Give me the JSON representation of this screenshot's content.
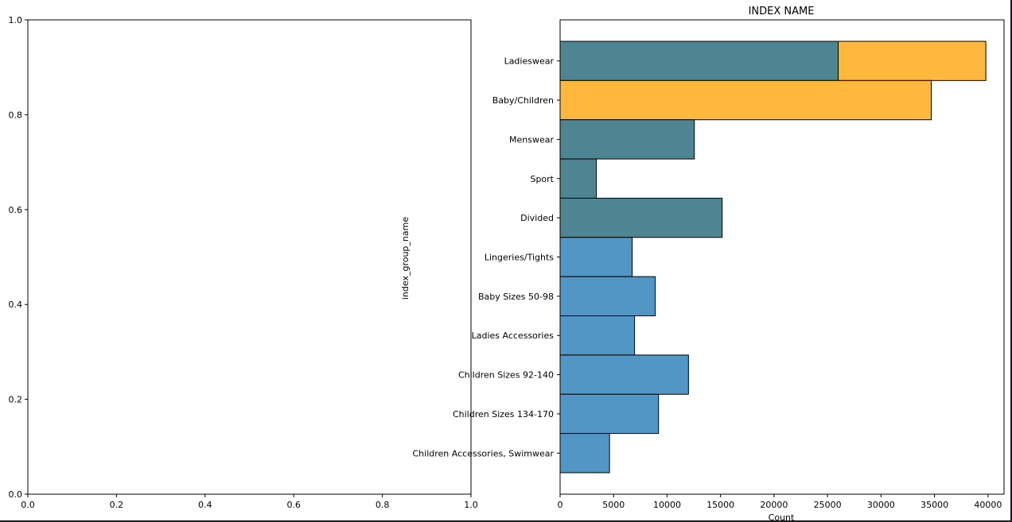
{
  "chart_data": [
    {
      "type": "empty",
      "title": "",
      "xlim": [
        0.0,
        1.0
      ],
      "ylim": [
        0.0,
        1.0
      ],
      "x_ticks": [
        "0.0",
        "0.2",
        "0.4",
        "0.6",
        "0.8",
        "1.0"
      ],
      "y_ticks": [
        "0.0",
        "0.2",
        "0.4",
        "0.6",
        "0.8",
        "1.0"
      ]
    },
    {
      "type": "bar",
      "orientation": "horizontal",
      "stacked": true,
      "title": "INDEX NAME",
      "xlabel": "Count",
      "ylabel": "index_group_name",
      "xlim": [
        0,
        41500
      ],
      "x_ticks": [
        "0",
        "5000",
        "10000",
        "15000",
        "20000",
        "25000",
        "30000",
        "35000",
        "40000"
      ],
      "categories": [
        "Ladieswear",
        "Baby/Children",
        "Menswear",
        "Sport",
        "Divided",
        "Lingeries/Tights",
        "Baby Sizes 50-98",
        "Ladies Accessories",
        "Children Sizes 92-140",
        "Children Sizes 134-170",
        "Children Accessories, Swimwear"
      ],
      "series": [
        {
          "color": "#4f8592",
          "values": [
            26000,
            0,
            12550,
            3390,
            15150,
            0,
            0,
            0,
            0,
            0,
            0
          ]
        },
        {
          "color": "#ffb83e",
          "values": [
            13800,
            34700,
            0,
            0,
            0,
            0,
            0,
            0,
            0,
            0,
            0
          ]
        },
        {
          "color": "#5196c5",
          "values": [
            0,
            0,
            0,
            0,
            0,
            6740,
            8900,
            6960,
            12000,
            9200,
            4620
          ]
        }
      ],
      "grid": false,
      "legend": false
    }
  ]
}
